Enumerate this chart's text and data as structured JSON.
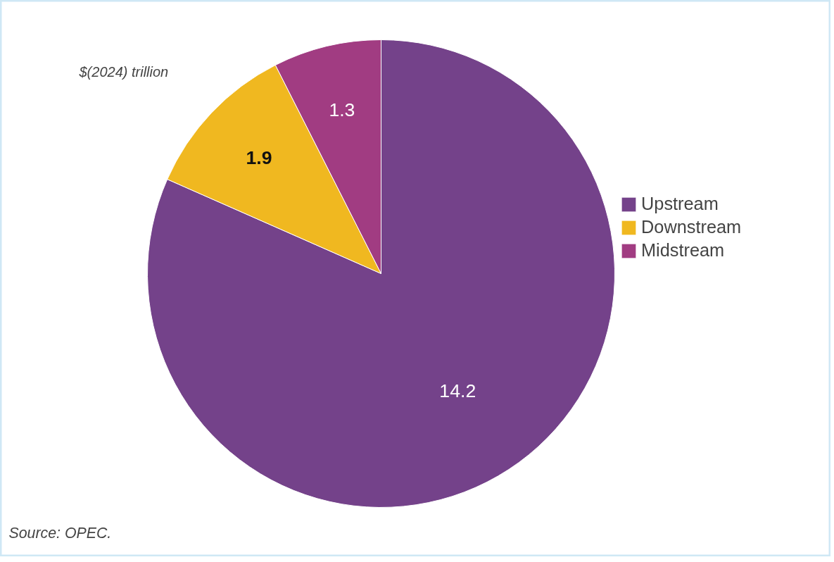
{
  "chart_data": {
    "type": "pie",
    "subtitle": "$(2024) trillion",
    "categories": [
      "Upstream",
      "Downstream",
      "Midstream"
    ],
    "values": [
      14.2,
      1.9,
      1.3
    ],
    "colors": [
      "#74428a",
      "#f0b820",
      "#a13c82"
    ],
    "data_labels": true,
    "legend": "right",
    "annotations": [
      "Source: OPEC."
    ]
  }
}
